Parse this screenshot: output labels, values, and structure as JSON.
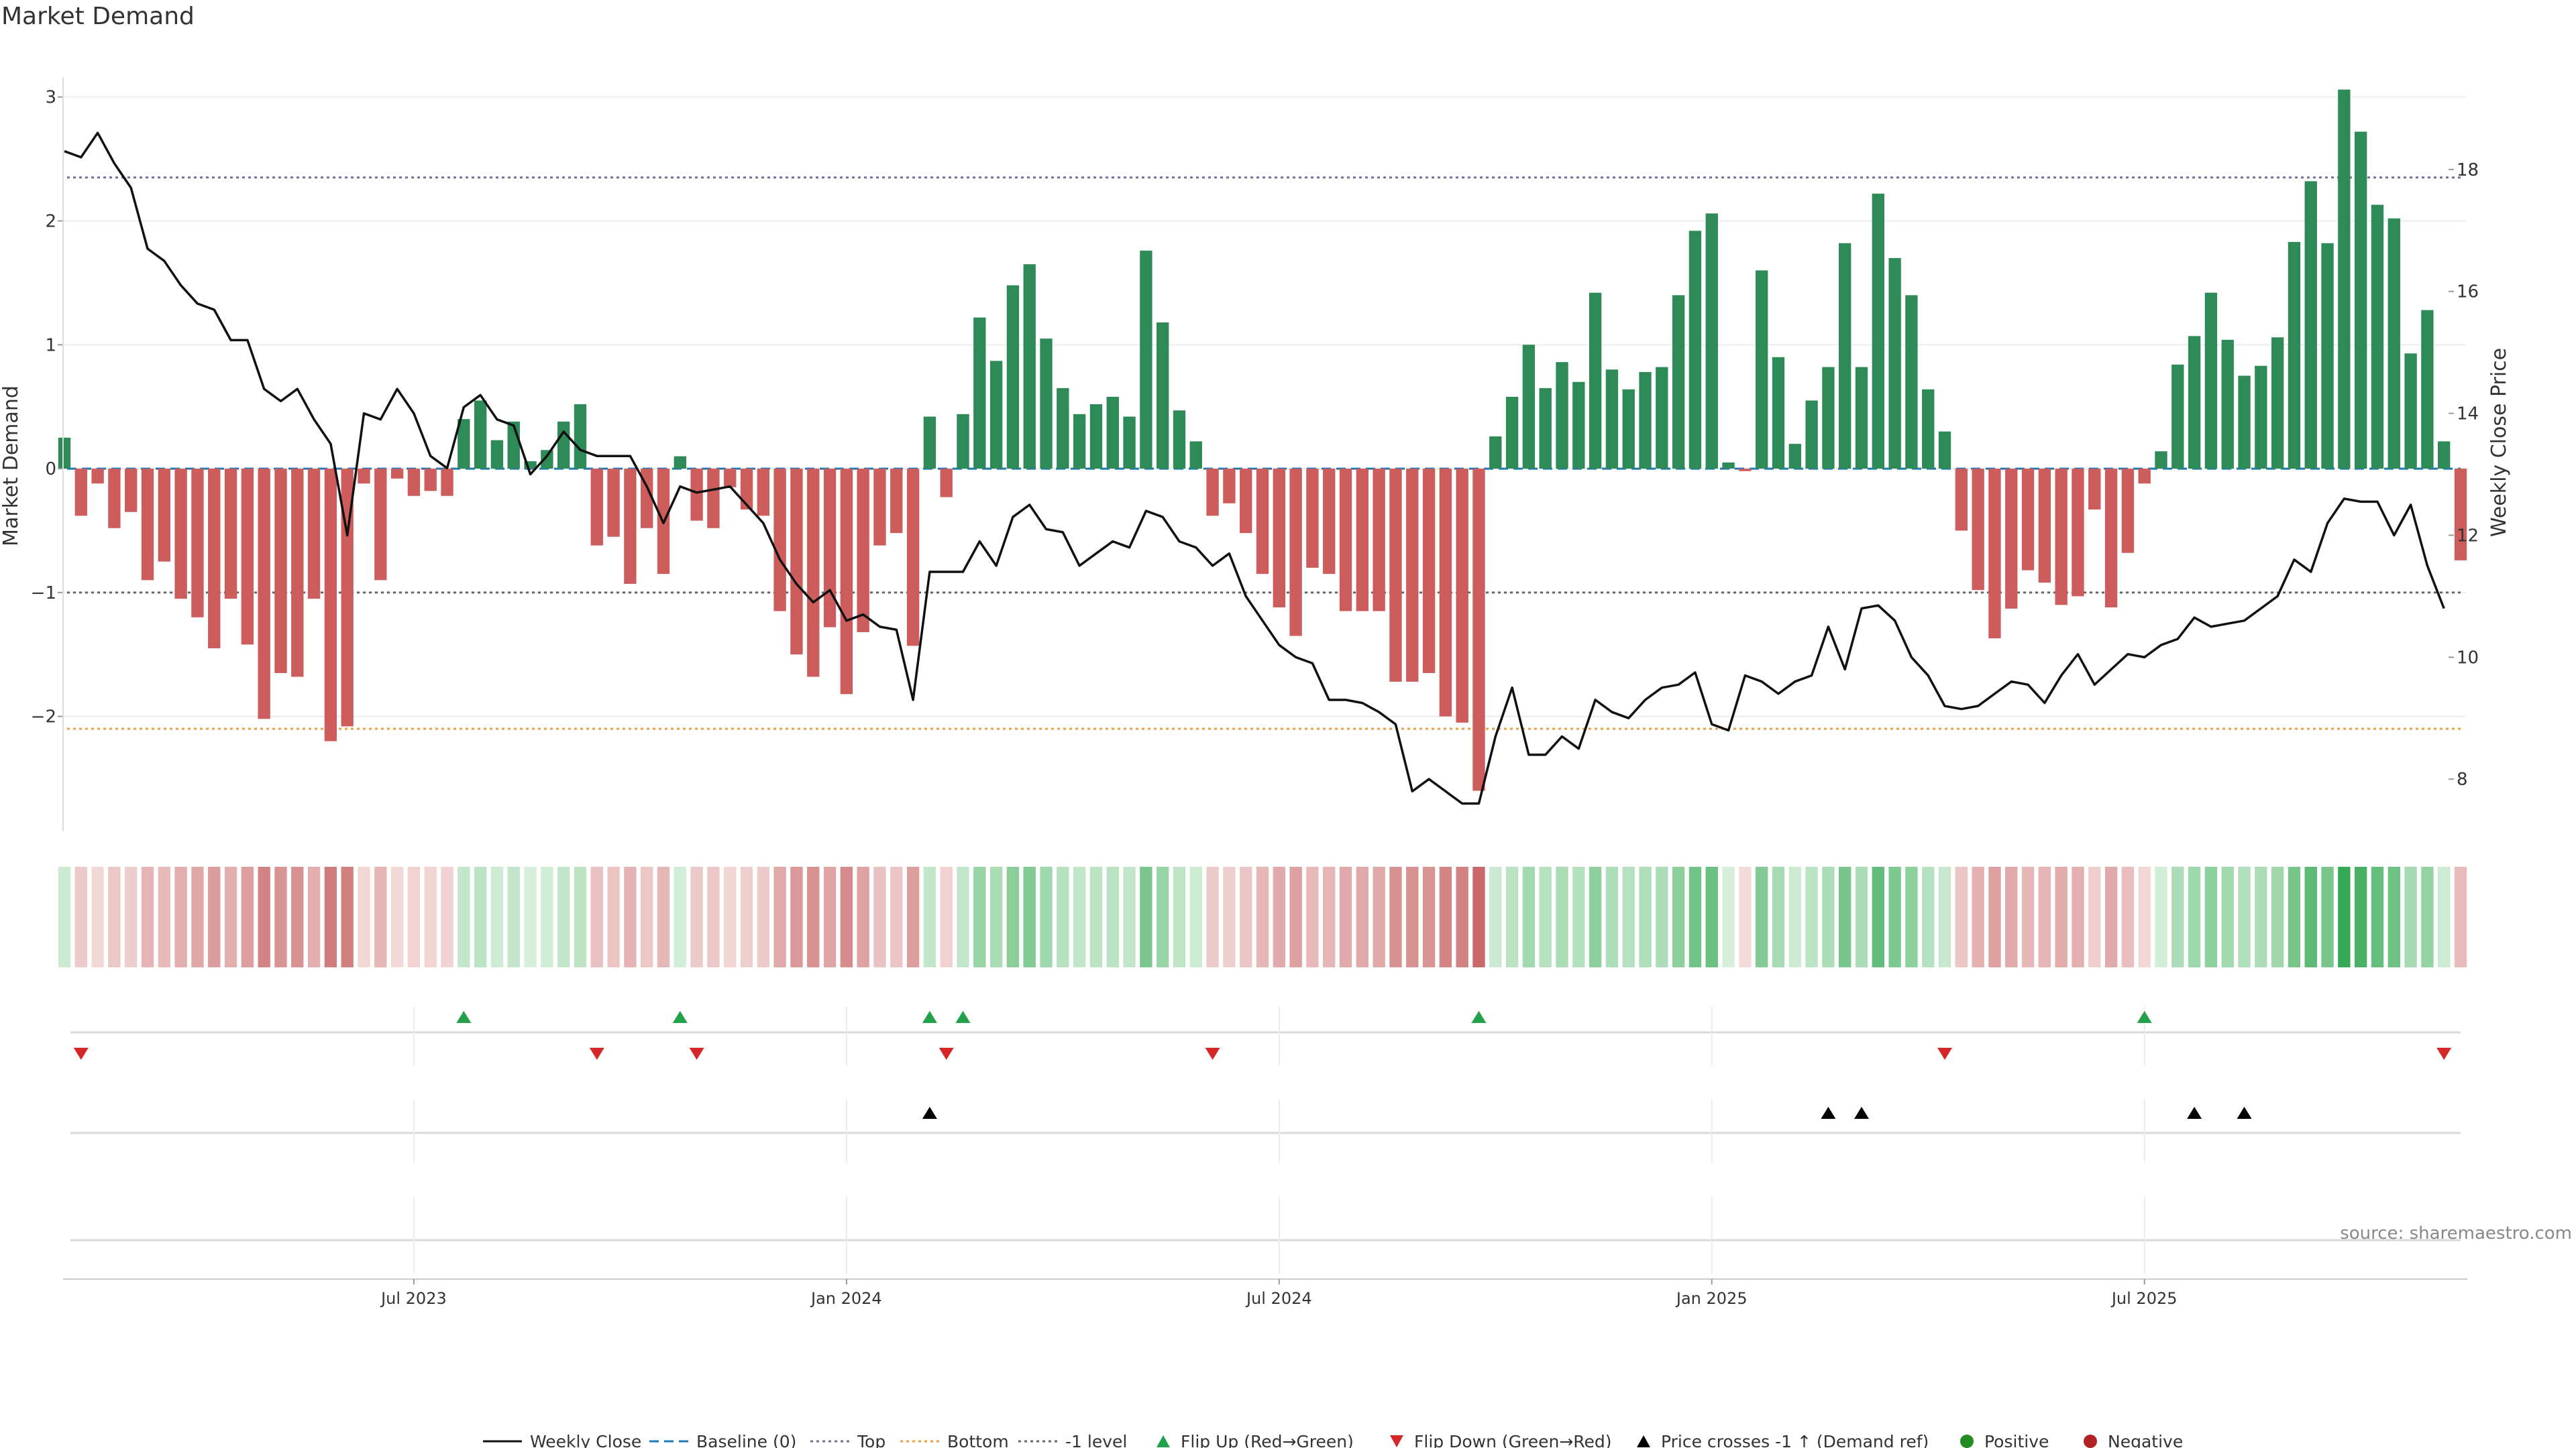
{
  "title": "Market Demand",
  "source": "source: sharemaestro.com",
  "legend": {
    "weekly_close": "Weekly Close",
    "baseline": "Baseline (0)",
    "top": "Top",
    "bottom": "Bottom",
    "minus1": "-1 level",
    "flip_up": "Flip Up (Red→Green)",
    "flip_down": "Flip Down (Green→Red)",
    "price_cross": "Price crosses -1 ↑ (Demand ref)",
    "positive": "Positive",
    "negative": "Negative"
  },
  "colors": {
    "positive": "#2e8b57",
    "negative": "#cd5c5c",
    "flip_up": "#22a04a",
    "flip_down": "#d62728",
    "price_line": "#111111",
    "baseline": "#1f77b4",
    "top": "#7070a0",
    "bottom": "#e8a040",
    "minus1": "#666666",
    "positive_dot": "#228b22",
    "negative_dot": "#b22222"
  },
  "chart_data": {
    "type": "bar",
    "ylabel": "Market Demand",
    "y2label": "Weekly Close Price",
    "ylim": [
      -2.9,
      3.35
    ],
    "y2lim": [
      7.2,
      19.9
    ],
    "yticks": [
      3,
      2,
      1,
      0,
      -1,
      -2
    ],
    "yticklabels": [
      "3",
      "2",
      "1",
      "0",
      "−1",
      "−2"
    ],
    "y2ticks": [
      18,
      16,
      14,
      12,
      10,
      8
    ],
    "y2ticklabels": [
      "18",
      "16",
      "14",
      "12",
      "10",
      "8"
    ],
    "xticks": [
      {
        "index": 21,
        "label": "Jul 2023"
      },
      {
        "index": 47,
        "label": "Jan 2024"
      },
      {
        "index": 73,
        "label": "Jul 2024"
      },
      {
        "index": 99,
        "label": "Jan 2025"
      },
      {
        "index": 125,
        "label": "Jul 2025"
      }
    ],
    "levels": {
      "baseline": 0,
      "top": 2.35,
      "bottom": -2.1,
      "minus1": -1
    },
    "demand": [
      0.25,
      -0.38,
      -0.12,
      -0.48,
      -0.35,
      -0.9,
      -0.75,
      -1.05,
      -1.2,
      -1.45,
      -1.05,
      -1.42,
      -2.02,
      -1.65,
      -1.68,
      -1.05,
      -2.2,
      -2.08,
      -0.12,
      -0.9,
      -0.08,
      -0.22,
      -0.18,
      -0.22,
      0.4,
      0.55,
      0.23,
      0.38,
      0.06,
      0.15,
      0.38,
      0.52,
      -0.62,
      -0.55,
      -0.93,
      -0.48,
      -0.85,
      0.1,
      -0.42,
      -0.48,
      -0.15,
      -0.33,
      -0.38,
      -1.15,
      -1.5,
      -1.68,
      -1.28,
      -1.82,
      -1.32,
      -0.62,
      -0.52,
      -1.43,
      0.42,
      -0.23,
      0.44,
      1.22,
      0.87,
      1.48,
      1.65,
      1.05,
      0.65,
      0.44,
      0.52,
      0.58,
      0.42,
      1.76,
      1.18,
      0.47,
      0.22,
      -0.38,
      -0.28,
      -0.52,
      -0.85,
      -1.12,
      -1.35,
      -0.8,
      -0.85,
      -1.15,
      -1.15,
      -1.15,
      -1.72,
      -1.72,
      -1.65,
      -2.0,
      -2.05,
      -2.6,
      0.26,
      0.58,
      1.0,
      0.65,
      0.86,
      0.7,
      1.42,
      0.8,
      0.64,
      0.78,
      0.82,
      1.4,
      1.92,
      2.06,
      0.05,
      -0.02,
      1.6,
      0.9,
      0.2,
      0.55,
      0.82,
      1.82,
      0.82,
      2.22,
      1.7,
      1.4,
      0.64,
      0.3,
      -0.5,
      -0.98,
      -1.37,
      -1.13,
      -0.82,
      -0.92,
      -1.1,
      -1.03,
      -0.33,
      -1.12,
      -0.68,
      -0.12,
      0.14,
      0.84,
      1.07,
      1.42,
      1.04,
      0.75,
      0.83,
      1.06,
      1.83,
      2.32,
      1.82,
      3.06,
      2.72,
      2.13,
      2.02,
      0.93,
      1.28,
      0.22,
      -0.74
    ],
    "close": [
      18.3,
      18.2,
      18.6,
      18.1,
      17.7,
      16.7,
      16.5,
      16.1,
      15.8,
      15.7,
      15.2,
      15.2,
      14.4,
      14.2,
      14.4,
      13.9,
      13.5,
      12.0,
      14.0,
      13.9,
      14.4,
      14.0,
      13.3,
      13.1,
      14.1,
      14.3,
      13.9,
      13.8,
      13.0,
      13.3,
      13.7,
      13.4,
      13.3,
      13.3,
      13.3,
      12.8,
      12.2,
      12.8,
      12.7,
      12.75,
      12.8,
      12.5,
      12.2,
      11.6,
      11.2,
      10.9,
      11.1,
      10.6,
      10.7,
      10.5,
      10.45,
      9.3,
      11.4,
      11.4,
      11.4,
      11.9,
      11.5,
      12.3,
      12.5,
      12.1,
      12.05,
      11.5,
      11.7,
      11.9,
      11.8,
      12.4,
      12.3,
      11.9,
      11.8,
      11.5,
      11.7,
      11.0,
      10.6,
      10.2,
      10.0,
      9.9,
      9.3,
      9.3,
      9.25,
      9.1,
      8.9,
      7.8,
      8.0,
      7.8,
      7.6,
      7.6,
      8.7,
      9.5,
      8.4,
      8.4,
      8.7,
      8.5,
      9.3,
      9.1,
      9.0,
      9.3,
      9.5,
      9.55,
      9.75,
      8.9,
      8.8,
      9.7,
      9.6,
      9.4,
      9.6,
      9.7,
      10.5,
      9.8,
      10.8,
      10.85,
      10.6,
      10.0,
      9.7,
      9.2,
      9.15,
      9.2,
      9.4,
      9.6,
      9.55,
      9.25,
      9.7,
      10.05,
      9.55,
      9.8,
      10.05,
      10.0,
      10.2,
      10.3,
      10.65,
      10.5,
      10.55,
      10.6,
      10.8,
      11.0,
      11.6,
      11.4,
      12.2,
      12.6,
      12.55,
      12.55,
      12.0,
      12.5,
      11.5,
      10.8
    ],
    "flip_up": [
      24,
      37,
      52,
      54,
      85,
      125
    ],
    "flip_down": [
      1,
      32,
      38,
      53,
      69,
      113,
      143
    ],
    "price_crosses": [
      52,
      106,
      108,
      128,
      131
    ]
  }
}
